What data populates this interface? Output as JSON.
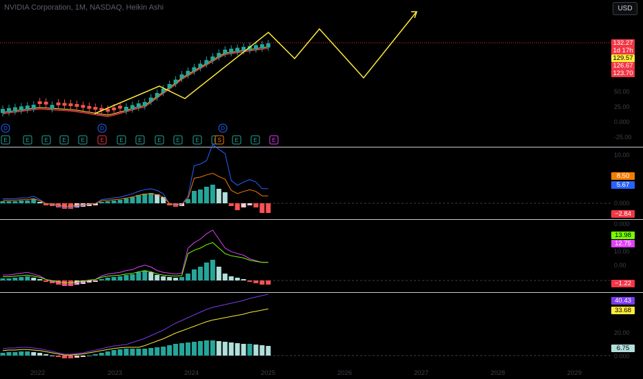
{
  "chart_title": "NVIDIA Corporation, 1M, NASDAQ, Heikin Ashi",
  "currency_button": "USD",
  "x_axis_years": [
    "2022",
    "2023",
    "2024",
    "2025",
    "2026",
    "2027",
    "2028",
    "2029"
  ],
  "price_axis_labels": [
    "",
    "",
    "50.00",
    "25.00",
    "0.000",
    "-25.00"
  ],
  "macd1_axis_labels": [
    "10.00",
    "0.000"
  ],
  "macd2_axis_labels": [
    "0.000",
    "10.00",
    "0.00"
  ],
  "macd3_axis_labels": [
    "20.00",
    "0.000"
  ],
  "price_badges": [
    {
      "text": "132.27",
      "color": "#f23645"
    },
    {
      "text": "1d 17h",
      "color": "#f23645"
    },
    {
      "text": "129.57",
      "color": "#ffeb3b"
    },
    {
      "text": "126.67",
      "color": "#f23645"
    },
    {
      "text": "123.70",
      "color": "#f23645"
    }
  ],
  "macd1_badges": [
    {
      "text": "8.50",
      "color": "#f57c00"
    },
    {
      "text": "5.67",
      "color": "#2962ff"
    },
    {
      "text": "−2.84",
      "color": "#f23645"
    }
  ],
  "macd2_badges": [
    {
      "text": "13.98",
      "color": "#76ff03"
    },
    {
      "text": "12.75",
      "color": "#e040fb"
    },
    {
      "text": "−1.22",
      "color": "#f23645"
    }
  ],
  "macd3_badges": [
    {
      "text": "40.43",
      "color": "#7c3aed"
    },
    {
      "text": "33.68",
      "color": "#ffeb3b"
    },
    {
      "text": "6.75",
      "color": "#b2dfdb"
    }
  ],
  "event_markers": {
    "dividend": "D",
    "earnings": "E",
    "split": "S"
  },
  "colors": {
    "up": "#26a69a",
    "down": "#ef5350",
    "projection": "#ffeb3b",
    "hist_up_strong": "#26a69a",
    "hist_up_weak": "#b2dfdb",
    "hist_down_strong": "#ff5252",
    "hist_down_weak": "#ffcdd2"
  }
}
